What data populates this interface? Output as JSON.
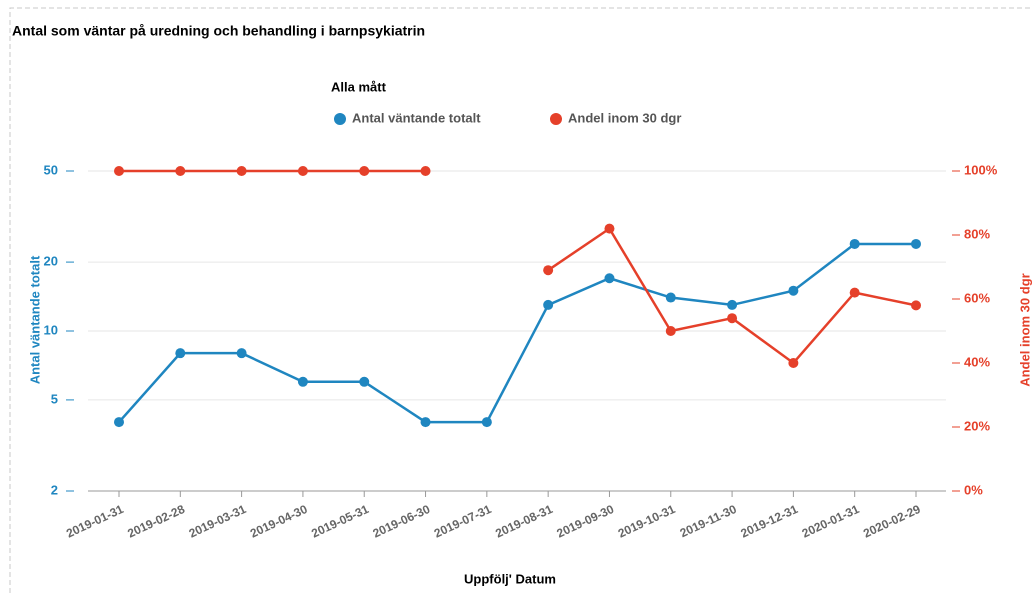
{
  "chart_data": {
    "type": "line",
    "title": "Antal som väntar på uredning och behandling i barnpsykiatrin",
    "legend_title": "Alla mått",
    "x_label": "Uppfölj' Datum",
    "y_label": "Antal väntande totalt",
    "y2_label": "Andel inom 30 dgr",
    "categories": [
      "2019-01-31",
      "2019-02-28",
      "2019-03-31",
      "2019-04-30",
      "2019-05-31",
      "2019-06-30",
      "2019-07-31",
      "2019-08-31",
      "2019-09-30",
      "2019-10-31",
      "2019-11-30",
      "2019-12-31",
      "2020-01-31",
      "2020-02-29"
    ],
    "series": [
      {
        "name": "Antal väntande totalt",
        "color": "#1f86c0",
        "values": [
          4,
          8,
          8,
          6,
          6,
          4,
          4,
          13,
          17,
          14,
          13,
          15,
          24,
          24
        ]
      },
      {
        "name": "Andel inom 30 dgr",
        "color": "#e5402a",
        "axis": "y2",
        "values": [
          100,
          100,
          100,
          100,
          100,
          100,
          null,
          69,
          82,
          50,
          54,
          40,
          62,
          58
        ]
      }
    ],
    "ylim": [
      2,
      50
    ],
    "yticks": [
      2,
      5,
      10,
      20,
      50
    ],
    "ylog": true,
    "y2lim": [
      0,
      100
    ],
    "y2ticks": [
      {
        "value": 0,
        "label": "0%"
      },
      {
        "value": 20,
        "label": "20%"
      },
      {
        "value": 40,
        "label": "40%"
      },
      {
        "value": 60,
        "label": "60%"
      },
      {
        "value": 80,
        "label": "80%"
      },
      {
        "value": 100,
        "label": "100%"
      }
    ],
    "grid": true,
    "legend": "top"
  }
}
